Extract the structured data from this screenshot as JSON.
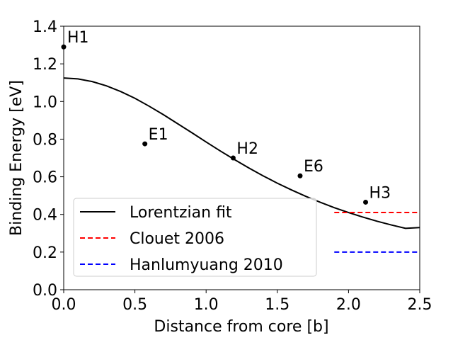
{
  "chart_data": {
    "type": "line",
    "xlabel": "Distance from core [b]",
    "ylabel": "Binding Energy [eV]",
    "xlim": [
      0.0,
      2.5
    ],
    "ylim": [
      0.0,
      1.4
    ],
    "xticks": [
      "0.0",
      "0.5",
      "1.0",
      "1.5",
      "2.0",
      "2.5"
    ],
    "yticks": [
      "0.0",
      "0.2",
      "0.4",
      "0.6",
      "0.8",
      "1.0",
      "1.2",
      "1.4"
    ],
    "grid": false,
    "legend_position": "lower-left",
    "points": [
      {
        "label": "H1",
        "x": 0.0,
        "y": 1.29
      },
      {
        "label": "E1",
        "x": 0.57,
        "y": 0.775
      },
      {
        "label": "H2",
        "x": 1.19,
        "y": 0.7
      },
      {
        "label": "E6",
        "x": 1.66,
        "y": 0.605
      },
      {
        "label": "H3",
        "x": 2.12,
        "y": 0.465
      }
    ],
    "series": [
      {
        "name": "Lorentzian fit",
        "style": "solid",
        "color": "#000000",
        "x": [
          0.0,
          0.1,
          0.2,
          0.3,
          0.4,
          0.5,
          0.6,
          0.7,
          0.8,
          0.9,
          1.0,
          1.1,
          1.2,
          1.3,
          1.4,
          1.5,
          1.6,
          1.7,
          1.8,
          1.9,
          2.0,
          2.1,
          2.2,
          2.3,
          2.4,
          2.5
        ],
        "y": [
          1.125,
          1.12,
          1.106,
          1.083,
          1.053,
          1.017,
          0.975,
          0.93,
          0.882,
          0.834,
          0.785,
          0.737,
          0.691,
          0.647,
          0.605,
          0.566,
          0.53,
          0.496,
          0.465,
          0.436,
          0.41,
          0.386,
          0.364,
          0.344,
          0.326,
          0.33
        ]
      },
      {
        "name": "Clouet 2006",
        "style": "dashed",
        "color": "#ff0000",
        "x": [
          1.9,
          2.5
        ],
        "y": [
          0.41,
          0.41
        ]
      },
      {
        "name": "Hanlumyuang 2010",
        "style": "dashed",
        "color": "#0000ff",
        "x": [
          1.9,
          2.5
        ],
        "y": [
          0.2,
          0.2
        ]
      }
    ]
  }
}
